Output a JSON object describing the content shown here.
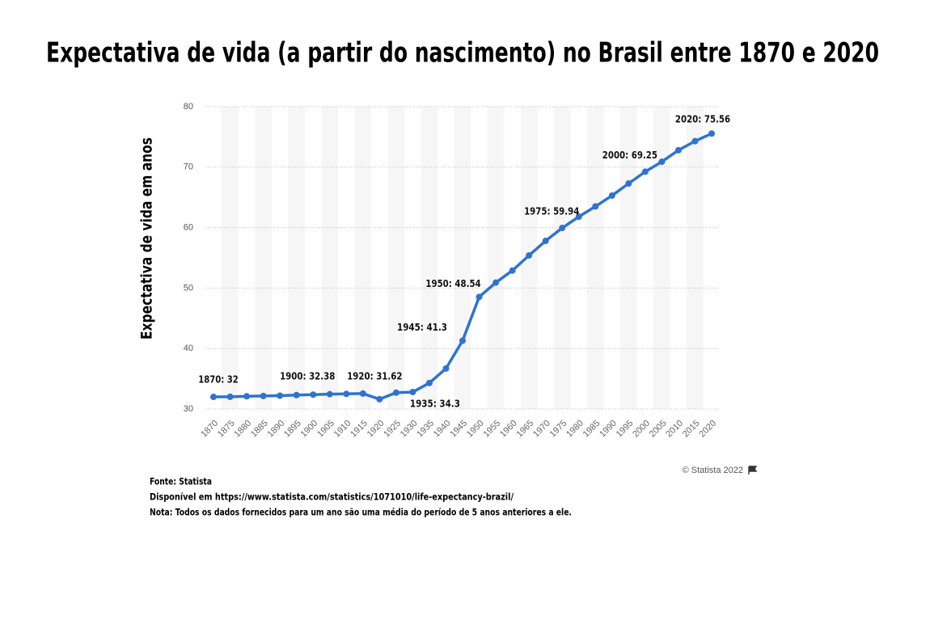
{
  "chart_data": {
    "type": "line",
    "title": "Expectativa de vida (a partir do nascimento) no Brasil entre 1870 e 2020",
    "y_label": "Expectativa de vida em anos",
    "categories": [
      "1870",
      "1875",
      "1880",
      "1885",
      "1890",
      "1895",
      "1900",
      "1905",
      "1910",
      "1915",
      "1920",
      "1925",
      "1930",
      "1935",
      "1940",
      "1945",
      "1950",
      "1955",
      "1960",
      "1965",
      "1970",
      "1975",
      "1980",
      "1985",
      "1990",
      "1995",
      "2000",
      "2005",
      "2010",
      "2015",
      "2020"
    ],
    "values": [
      32,
      32.02,
      32.1,
      32.15,
      32.2,
      32.3,
      32.38,
      32.45,
      32.5,
      32.55,
      31.62,
      32.7,
      32.8,
      34.3,
      36.7,
      41.3,
      48.54,
      50.9,
      52.9,
      55.4,
      57.8,
      59.94,
      61.8,
      63.5,
      65.3,
      67.3,
      69.25,
      70.9,
      72.8,
      74.3,
      75.56
    ],
    "value_labels": [
      "1870: 32",
      null,
      null,
      null,
      null,
      null,
      "1900: 32.38",
      null,
      null,
      null,
      "1920: 31.62",
      null,
      null,
      "1935: 34.3",
      null,
      "1945: 41.3",
      "1950: 48.54",
      null,
      null,
      null,
      null,
      "1975: 59.94",
      null,
      null,
      null,
      null,
      "2000: 69.25",
      null,
      null,
      null,
      "2020: 75.56"
    ],
    "color": "#2f73d0",
    "ylim": [
      30,
      80
    ],
    "yticks": [
      30,
      40,
      50,
      60,
      70,
      80
    ],
    "grid": true,
    "source": "Fonte: Statista",
    "link": "Disponível em  https://www.statista.com/statistics/1071010/life-expectancy-brazil/",
    "note": "Nota: Todos os dados fornecidos para um ano são uma média do período de 5 anos anteriores a ele.",
    "credit": "© Statista 2022"
  }
}
